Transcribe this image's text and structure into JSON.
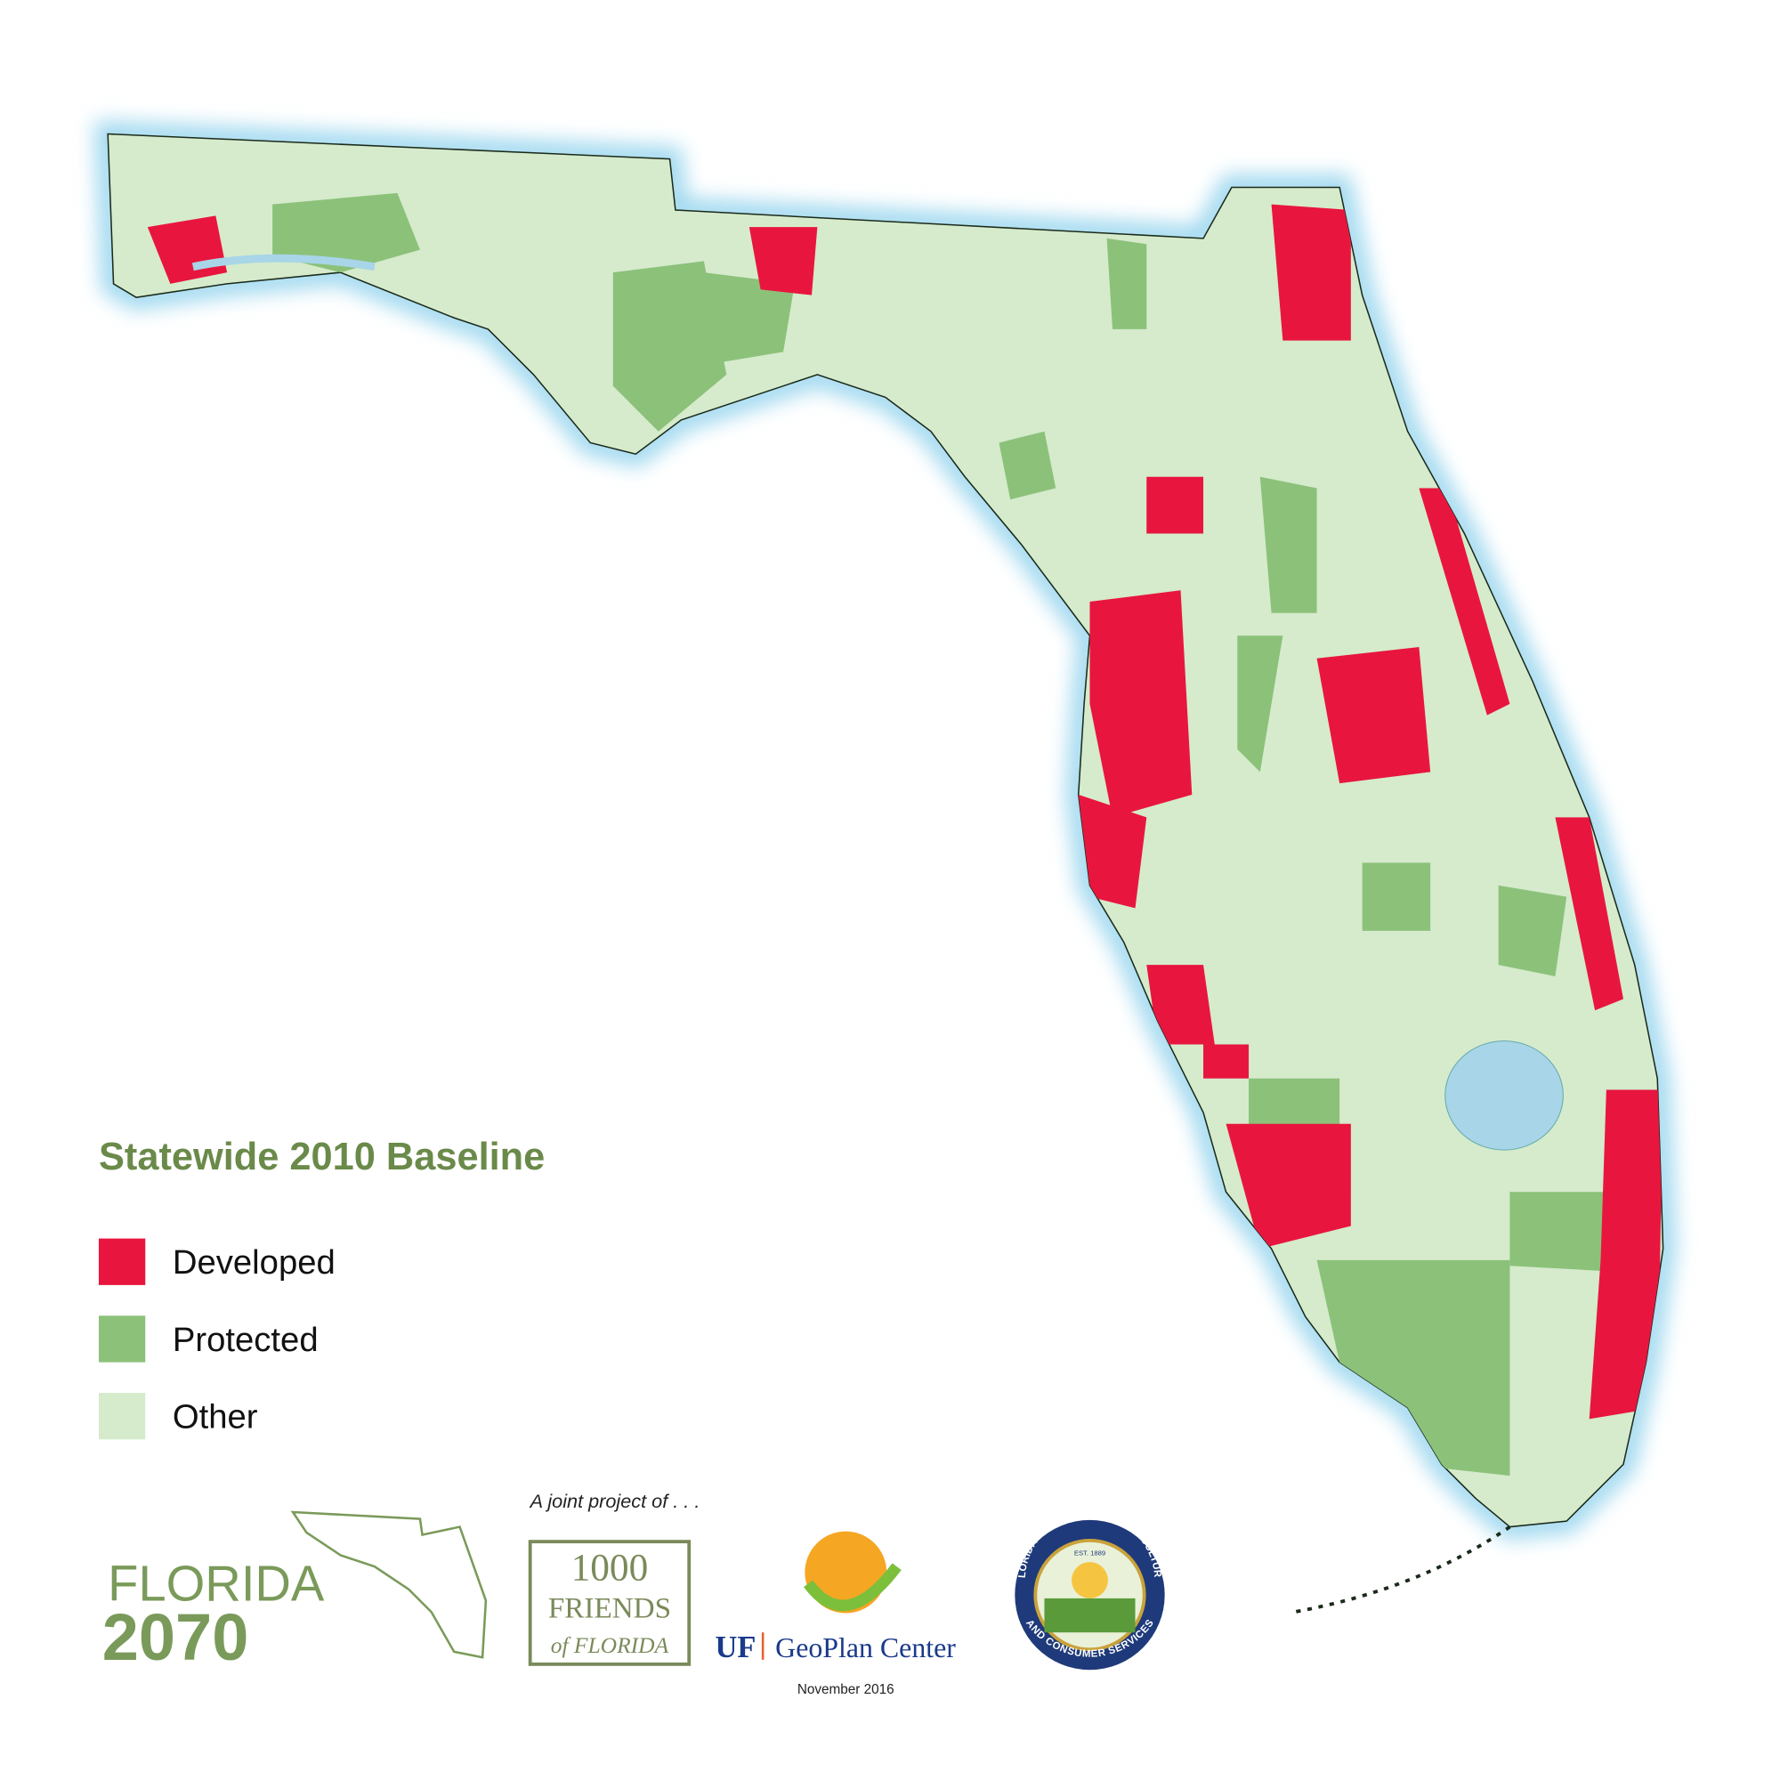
{
  "legend": {
    "title": "Statewide 2010 Baseline",
    "items": [
      {
        "label": "Developed",
        "color": "#e8163e"
      },
      {
        "label": "Protected",
        "color": "#8cc17a"
      },
      {
        "label": "Other",
        "color": "#d5ebcc"
      }
    ]
  },
  "credits": {
    "intro": "A joint project of . . .",
    "florida_2070": [
      "FLORIDA",
      "2070"
    ],
    "friends": [
      "1000",
      "FRIENDS",
      "of FLORIDA"
    ],
    "geoplan": [
      "UF",
      "GeoPlan Center"
    ],
    "date": "November 2016",
    "seal": [
      "FLORIDA DEPARTMENT OF AGRICULTURE",
      "AND CONSUMER SERVICES",
      "EST. 1889"
    ]
  }
}
